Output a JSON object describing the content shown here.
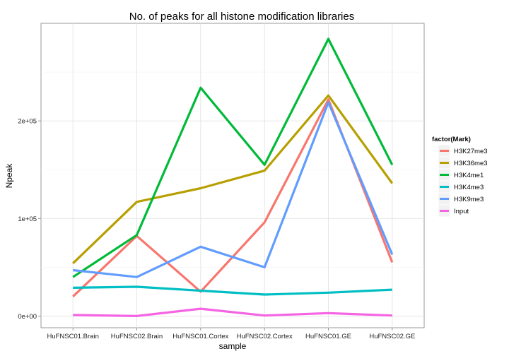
{
  "chart_data": {
    "type": "line",
    "title": "No. of peaks for all histone modification libraries",
    "xlabel": "sample",
    "ylabel": "Npeak",
    "categories": [
      "HuFNSC01.Brain",
      "HuFNSC02.Brain",
      "HuFNSC01.Cortex",
      "HuFNSC02.Cortex",
      "HuFNSC01.GE",
      "HuFNSC02.GE"
    ],
    "ylim": [
      -12000,
      300000
    ],
    "yticks": [
      {
        "value": 0,
        "label": "0e+00"
      },
      {
        "value": 100000,
        "label": "1e+05"
      },
      {
        "value": 200000,
        "label": "2e+05"
      }
    ],
    "grid": true,
    "legend": {
      "title": "factor(Mark)",
      "position": "right"
    },
    "series": [
      {
        "name": "H3K27me3",
        "color": "#F8766D",
        "values": [
          20000,
          82000,
          25000,
          96000,
          222000,
          55000
        ]
      },
      {
        "name": "H3K36me3",
        "color": "#B79F00",
        "values": [
          54000,
          117000,
          131000,
          149000,
          226000,
          136000
        ]
      },
      {
        "name": "H3K4me1",
        "color": "#00BA38",
        "values": [
          40000,
          83000,
          234000,
          155000,
          284000,
          155000
        ]
      },
      {
        "name": "H3K4me3",
        "color": "#00BFC4",
        "values": [
          29000,
          30000,
          26000,
          22000,
          24000,
          27000
        ]
      },
      {
        "name": "H3K9me3",
        "color": "#619CFF",
        "values": [
          47000,
          40000,
          71000,
          50000,
          219000,
          63000
        ]
      },
      {
        "name": "Input",
        "color": "#F564E3",
        "values": [
          1000,
          0,
          7500,
          500,
          3000,
          500
        ]
      }
    ]
  }
}
